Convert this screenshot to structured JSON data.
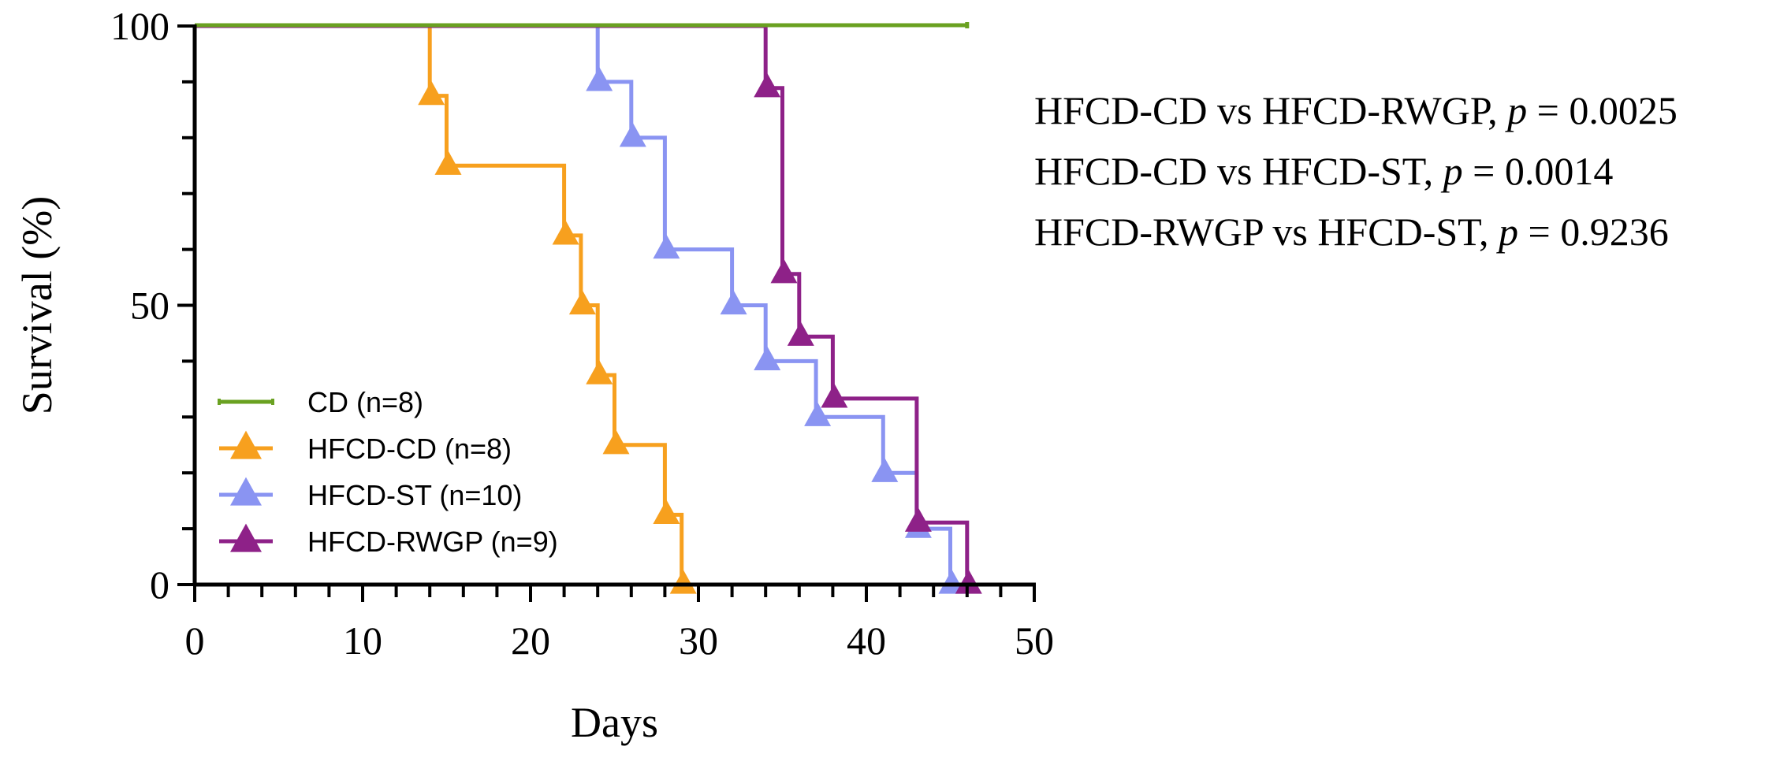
{
  "chart_data": {
    "type": "line",
    "subtype": "kaplan-meier step",
    "xlabel": "Days",
    "ylabel": "Survival (%)",
    "xlim": [
      0,
      50
    ],
    "ylim": [
      0,
      100
    ],
    "xticks": [
      0,
      10,
      20,
      30,
      40,
      50
    ],
    "yticks": [
      0,
      50,
      100
    ],
    "grid": false,
    "legend_position": "bottom-left",
    "series": [
      {
        "name": "CD (n=8)",
        "color": "#6aa121",
        "marker": "line",
        "x": [
          0,
          46
        ],
        "y": [
          100,
          100
        ]
      },
      {
        "name": "HFCD-CD (n=8)",
        "color": "#f7a01e",
        "marker": "triangle",
        "x": [
          0,
          14,
          15,
          22,
          23,
          24,
          25,
          28,
          29
        ],
        "y": [
          100,
          87.5,
          75,
          62.5,
          50,
          37.5,
          25,
          12.5,
          0
        ]
      },
      {
        "name": "HFCD-ST (n=10)",
        "color": "#8a94f2",
        "marker": "triangle",
        "x": [
          0,
          24,
          26,
          28,
          32,
          34,
          37,
          41,
          43,
          45
        ],
        "y": [
          100,
          90,
          80,
          60,
          50,
          40,
          30,
          20,
          10,
          0
        ]
      },
      {
        "name": "HFCD-RWGP (n=9)",
        "color": "#8e2188",
        "marker": "triangle",
        "x": [
          0,
          34,
          35,
          36,
          38,
          43,
          46
        ],
        "y": [
          100,
          88.9,
          55.6,
          44.4,
          33.3,
          11.1,
          0
        ]
      }
    ],
    "annotations": [
      {
        "label": "HFCD-CD vs HFCD-RWGP, ",
        "p_symbol": "p",
        "eq": " = ",
        "value": "0.0025"
      },
      {
        "label": "HFCD-CD vs HFCD-ST, ",
        "p_symbol": "p",
        "eq": " = ",
        "value": "0.0014"
      },
      {
        "label": "HFCD-RWGP vs HFCD-ST, ",
        "p_symbol": "p",
        "eq": " = ",
        "value": "0.9236"
      }
    ]
  }
}
